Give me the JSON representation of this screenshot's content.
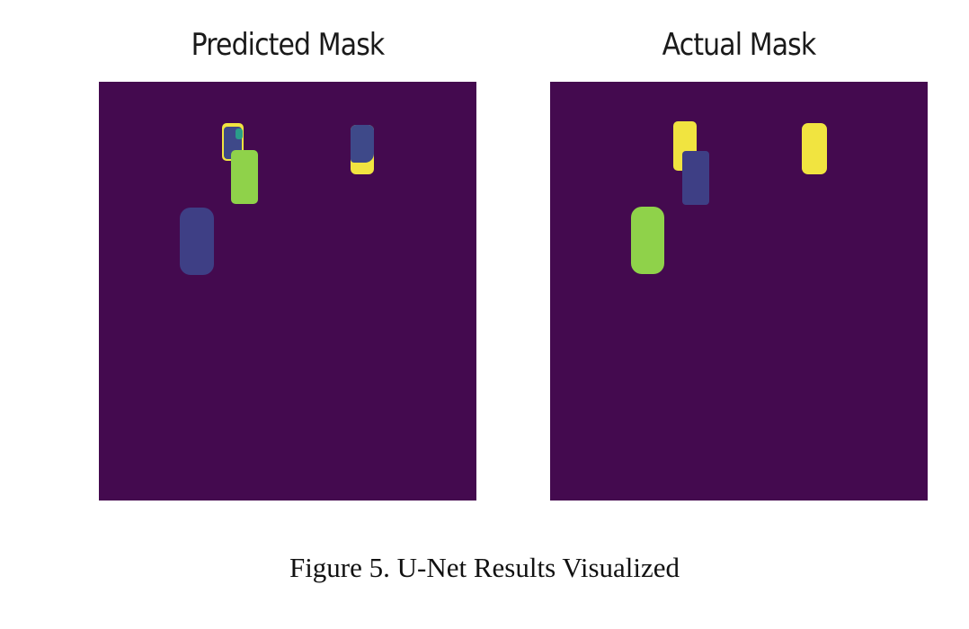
{
  "figure": {
    "caption": "Figure 5. U-Net Results Visualized"
  },
  "panels": [
    {
      "title": "Predicted Mask"
    },
    {
      "title": "Actual Mask"
    }
  ],
  "colors": {
    "background": "#440a4f",
    "class_dark_blue": "#3e4989",
    "class_blue": "#3b528b",
    "class_green": "#8fd24a",
    "class_yellow": "#f1e440",
    "class_teal": "#2a9d8a"
  }
}
